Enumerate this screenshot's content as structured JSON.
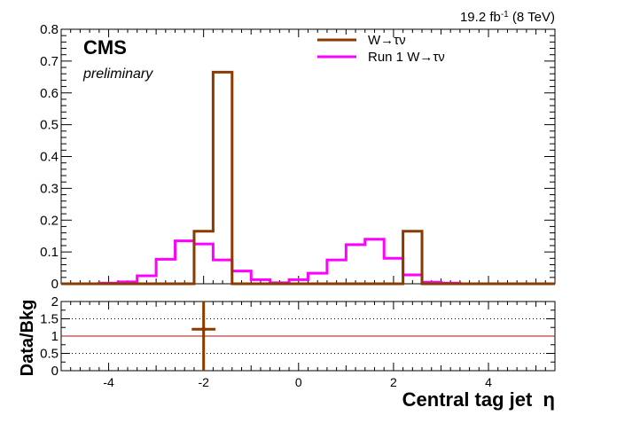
{
  "header": {
    "lumi_html": "19.2 fb<tspan baseline-shift=\"super\" font-size=\"10\">-1</tspan> (8 TeV)",
    "lumi": "19.2 fb-1 (8 TeV)",
    "cms": "CMS",
    "preliminary": "preliminary"
  },
  "legend": {
    "items": [
      {
        "label": "W→τν",
        "color": "#8b3a00"
      },
      {
        "label": "Run 1 W→τν",
        "color": "#ff00ff"
      }
    ]
  },
  "chart_data": [
    {
      "type": "step-histogram",
      "panel": "main",
      "xlabel": "Central tag jet  η",
      "ylabel": "",
      "xlim": [
        -5.0,
        5.4
      ],
      "ylim": [
        0,
        0.8
      ],
      "yticks": [
        "0",
        "0.1",
        "0.2",
        "0.3",
        "0.4",
        "0.5",
        "0.6",
        "0.7",
        "0.8"
      ],
      "xticks": [
        "-4",
        "-2",
        "0",
        "2",
        "4"
      ],
      "bin_edges": [
        -5.0,
        -4.6,
        -4.2,
        -3.8,
        -3.4,
        -3.0,
        -2.6,
        -2.2,
        -1.8,
        -1.4,
        -1.0,
        -0.6,
        -0.2,
        0.2,
        0.6,
        1.0,
        1.4,
        1.8,
        2.2,
        2.6,
        3.0,
        3.4,
        3.8,
        4.2,
        4.6,
        5.0,
        5.4
      ],
      "series": [
        {
          "name": "W→τν",
          "color": "#8b3a00",
          "values": [
            0,
            0,
            0,
            0,
            0,
            0,
            0,
            0.165,
            0.665,
            0,
            0,
            0,
            0,
            0,
            0,
            0,
            0,
            0,
            0.165,
            0,
            0,
            0,
            0,
            0,
            0,
            0
          ]
        },
        {
          "name": "Run 1 W→τν",
          "color": "#ff00ff",
          "values": [
            0,
            0,
            0.002,
            0.006,
            0.025,
            0.077,
            0.135,
            0.125,
            0.075,
            0.04,
            0.013,
            0.003,
            0.013,
            0.033,
            0.075,
            0.123,
            0.14,
            0.08,
            0.028,
            0.005,
            0.002,
            0,
            0,
            0,
            0,
            0
          ]
        }
      ]
    },
    {
      "type": "ratio",
      "panel": "ratio",
      "xlabel": "Central tag jet  η",
      "ylabel": "Data/Bkg",
      "xlim": [
        -5.0,
        5.4
      ],
      "ylim": [
        0,
        2
      ],
      "yticks": [
        "0",
        "0.5",
        "1",
        "1.5",
        "2"
      ],
      "xticks": [
        "-4",
        "-2",
        "0",
        "2",
        "4"
      ],
      "reference_line": 1,
      "dotted_lines": [
        0.5,
        1.5
      ],
      "points": [
        {
          "x": -2.0,
          "y": 1.2,
          "xerr": 0.25,
          "yerr_low": 1.2,
          "yerr_high": 0.8,
          "color": "#8b3a00"
        }
      ]
    }
  ]
}
